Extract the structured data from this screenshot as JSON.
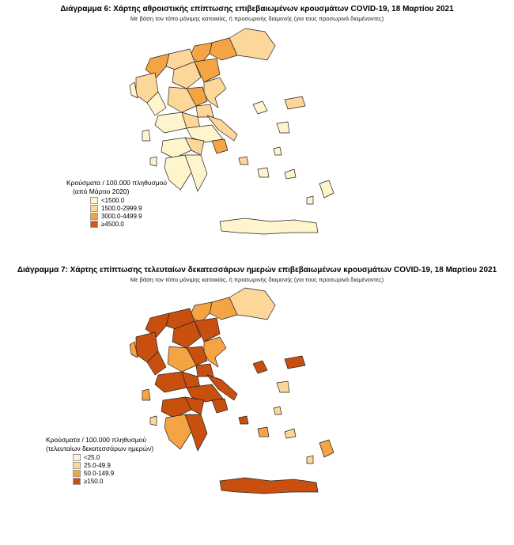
{
  "figure1": {
    "title": "Διάγραμμα 6: Χάρτης αθροιστικής επίπτωσης επιβεβαιωμένων κρουσμάτων COVID-19, 18 Μαρτίου 2021",
    "subtitle": "Με βάση τον τόπο μόνιμης κατοικίας, ή προσωρινής διαμονής (για τους προσωρινά διαμένοντες)",
    "legend_title_line1": "Κρούσματα / 100.000 πληθυσμού",
    "legend_title_line2": "(από Μάρτιο 2020)",
    "legend": [
      {
        "label": "<1500.0",
        "color": "#fff5cc"
      },
      {
        "label": "1500.0-2999.9",
        "color": "#fdd799"
      },
      {
        "label": "3000.0-4499.9",
        "color": "#f5a444"
      },
      {
        "label": "≥4500.0",
        "color": "#d25a14"
      }
    ]
  },
  "figure2": {
    "title": "Διάγραμμα 7: Χάρτης επίπτωσης τελευταίων δεκατεσσάρων ημερών επιβεβαιωμένων κρουσμάτων COVID-19, 18 Μαρτίου 2021",
    "subtitle": "Με βάση τον τόπο μόνιμης κατοικίας, ή προσωρινής διαμονής (για τους προσωρινά διαμένοντες)",
    "legend_title_line1": "Κρούσματα / 100.000 πληθυσμού",
    "legend_title_line2": "(τελευταίων δεκατεσσάρων ημερών)",
    "legend": [
      {
        "label": "<25.0",
        "color": "#fff5cc"
      },
      {
        "label": "25.0-49.9",
        "color": "#fdd799"
      },
      {
        "label": "50.0-149.9",
        "color": "#f5a444"
      },
      {
        "label": "≥150.0",
        "color": "#c94f0f"
      }
    ]
  }
}
